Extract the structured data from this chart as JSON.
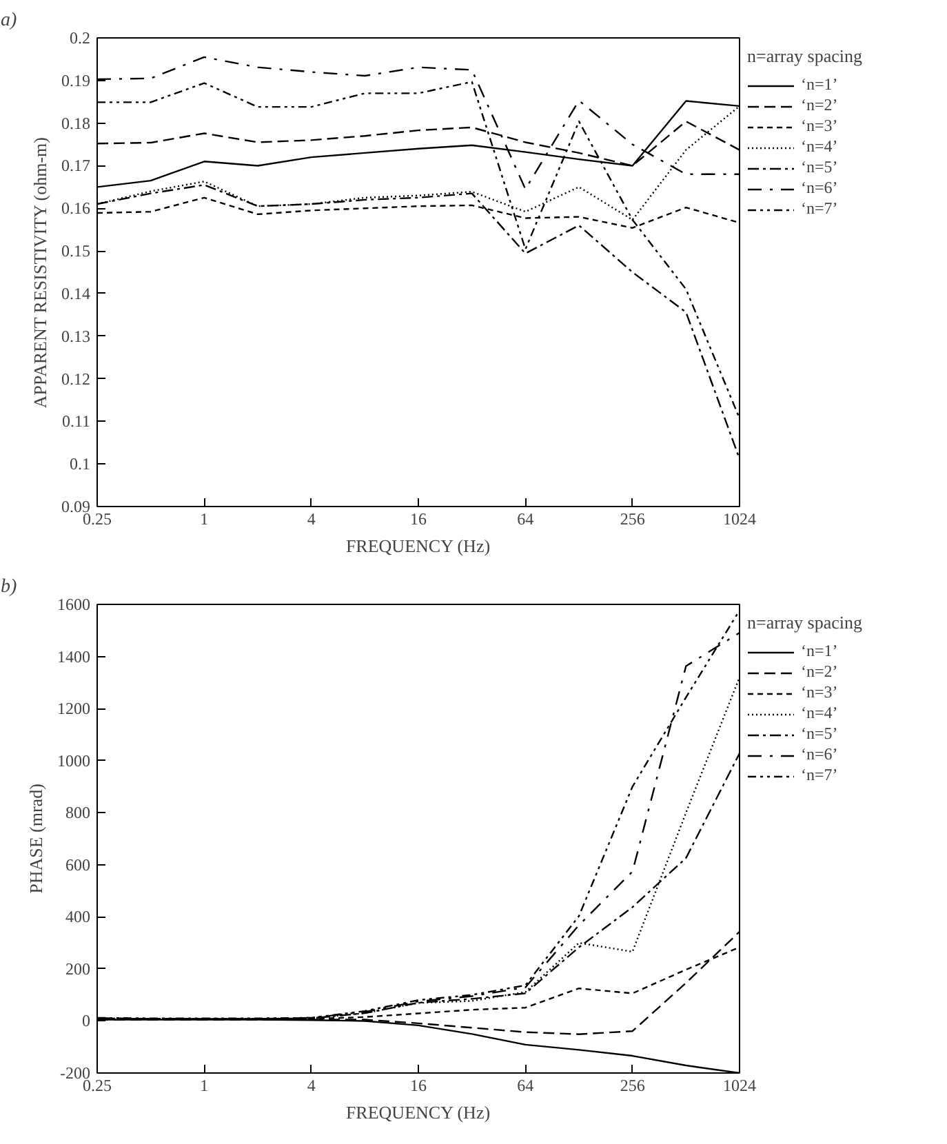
{
  "chart_data": [
    {
      "type": "line",
      "annotations": [
        "a)"
      ],
      "xlabel": "FREQUENCY (Hz)",
      "ylabel": "APPARENT RESISTIVITY (ohm-m)",
      "log": "x",
      "legend": "right",
      "legend_title": "n=array spacing",
      "grid": false,
      "x": [
        0.25,
        0.5,
        1,
        2,
        4,
        8,
        16,
        32,
        64,
        128,
        256,
        512,
        1024
      ],
      "xlim": [
        0.25,
        1024
      ],
      "xticks": [
        0.25,
        1,
        4,
        16,
        64,
        256,
        1024
      ],
      "ylim": [
        0.09,
        0.2
      ],
      "yticks": [
        0.09,
        0.1,
        0.11,
        0.12,
        0.13,
        0.14,
        0.15,
        0.16,
        0.17,
        0.18,
        0.19,
        0.2
      ],
      "series": [
        {
          "name": "‘n=1’",
          "color": "#000000",
          "line_style": "solid",
          "values": [
            0.165,
            0.1665,
            0.171,
            0.17,
            0.172,
            0.173,
            0.174,
            0.1748,
            0.1732,
            0.1715,
            0.17,
            0.1852,
            0.184
          ]
        },
        {
          "name": "‘n=2’",
          "color": "#000000",
          "line_style": "dashed",
          "values": [
            0.1752,
            0.1754,
            0.1776,
            0.1755,
            0.176,
            0.177,
            0.1783,
            0.179,
            0.1755,
            0.173,
            0.17,
            0.1804,
            0.1737
          ]
        },
        {
          "name": "‘n=3’",
          "color": "#000000",
          "line_style": "shortdash",
          "values": [
            0.1589,
            0.1592,
            0.1625,
            0.1586,
            0.1595,
            0.16,
            0.1605,
            0.1607,
            0.1577,
            0.158,
            0.1554,
            0.1602,
            0.1566
          ]
        },
        {
          "name": "‘n=4’",
          "color": "#000000",
          "line_style": "dotted",
          "values": [
            0.161,
            0.164,
            0.1663,
            0.1605,
            0.161,
            0.1625,
            0.163,
            0.1639,
            0.1592,
            0.165,
            0.1573,
            0.1737,
            0.184
          ]
        },
        {
          "name": "‘n=5’",
          "color": "#000000",
          "line_style": "dashdot",
          "values": [
            0.161,
            0.1635,
            0.1655,
            0.1605,
            0.161,
            0.162,
            0.1625,
            0.1635,
            0.1494,
            0.156,
            0.145,
            0.1356,
            0.1012
          ]
        },
        {
          "name": "‘n=6’",
          "color": "#000000",
          "line_style": "longdashdot",
          "values": [
            0.1903,
            0.1905,
            0.1955,
            0.1931,
            0.192,
            0.1911,
            0.1931,
            0.1925,
            0.1645,
            0.1853,
            0.175,
            0.168,
            0.168
          ]
        },
        {
          "name": "‘n=7’",
          "color": "#000000",
          "line_style": "dashdotdot",
          "values": [
            0.1849,
            0.1849,
            0.1894,
            0.1838,
            0.1838,
            0.187,
            0.187,
            0.1897,
            0.1504,
            0.1804,
            0.1573,
            0.141,
            0.1107
          ]
        }
      ]
    },
    {
      "type": "line",
      "annotations": [
        "b)"
      ],
      "xlabel": "FREQUENCY (Hz)",
      "ylabel": "PHASE (mrad)",
      "log": "x",
      "legend": "right",
      "legend_title": "n=array spacing",
      "grid": false,
      "x": [
        0.25,
        0.5,
        1,
        2,
        4,
        8,
        16,
        32,
        64,
        128,
        256,
        512,
        1024
      ],
      "xlim": [
        0.25,
        1024
      ],
      "xticks": [
        0.25,
        1,
        4,
        16,
        64,
        256,
        1024
      ],
      "ylim": [
        -200,
        1600
      ],
      "yticks": [
        -200,
        0,
        200,
        400,
        600,
        800,
        1000,
        1200,
        1400,
        1600
      ],
      "series": [
        {
          "name": "‘n=1’",
          "color": "#000000",
          "line_style": "solid",
          "values": [
            5,
            5,
            5,
            5,
            3,
            0,
            -17,
            -50,
            -91,
            -111,
            -134,
            -171,
            -200
          ]
        },
        {
          "name": "‘n=2’",
          "color": "#000000",
          "line_style": "dashed",
          "values": [
            5,
            5,
            5,
            5,
            5,
            5,
            -9,
            -26,
            -43,
            -51,
            -39,
            146,
            343
          ]
        },
        {
          "name": "‘n=3’",
          "color": "#000000",
          "line_style": "shortdash",
          "values": [
            10,
            8,
            8,
            8,
            8,
            15,
            29,
            43,
            51,
            125,
            106,
            197,
            283
          ]
        },
        {
          "name": "‘n=4’",
          "color": "#000000",
          "line_style": "dotted",
          "values": [
            10,
            8,
            8,
            8,
            10,
            30,
            69,
            77,
            111,
            300,
            266,
            800,
            1320
          ]
        },
        {
          "name": "‘n=5’",
          "color": "#000000",
          "line_style": "dashdot",
          "values": [
            10,
            8,
            8,
            8,
            10,
            30,
            70,
            85,
            106,
            283,
            437,
            626,
            1028
          ]
        },
        {
          "name": "‘n=6’",
          "color": "#000000",
          "line_style": "longdashdot",
          "values": [
            10,
            8,
            8,
            8,
            12,
            35,
            75,
            95,
            129,
            368,
            574,
            1363,
            1491
          ]
        },
        {
          "name": "‘n=7’",
          "color": "#000000",
          "line_style": "dashdotdot",
          "values": [
            12,
            10,
            10,
            10,
            12,
            38,
            80,
            100,
            137,
            403,
            900,
            1243,
            1577
          ]
        }
      ]
    }
  ]
}
